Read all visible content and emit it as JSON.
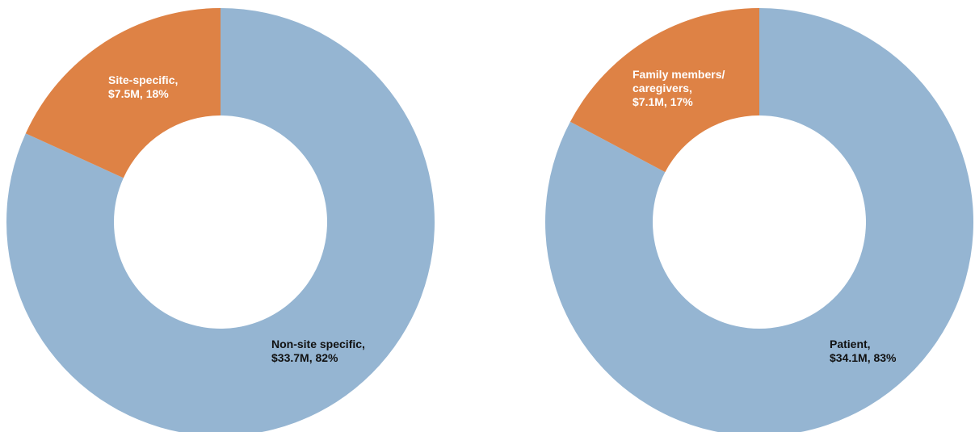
{
  "chart_data": [
    {
      "type": "pie",
      "variant": "donut",
      "title": "",
      "slices": [
        {
          "name": "Non-site specific",
          "value": 33.7,
          "value_label": "$33.7M",
          "percent": 82,
          "color": "#95b5d2",
          "label_lines": [
            "Non-site specific,",
            "$33.7M, 82%"
          ],
          "label_color": "#111111"
        },
        {
          "name": "Site-specific",
          "value": 7.5,
          "value_label": "$7.5M",
          "percent": 18,
          "color": "#de8245",
          "label_lines": [
            "Site-specific,",
            "$7.5M, 18%"
          ],
          "label_color": "#ffffff"
        }
      ]
    },
    {
      "type": "pie",
      "variant": "donut",
      "title": "",
      "slices": [
        {
          "name": "Patient",
          "value": 34.1,
          "value_label": "$34.1M",
          "percent": 83,
          "color": "#95b5d2",
          "label_lines": [
            "Patient,",
            "$34.1M, 83%"
          ],
          "label_color": "#111111"
        },
        {
          "name": "Family members/caregivers",
          "value": 7.1,
          "value_label": "$7.1M",
          "percent": 17,
          "color": "#de8245",
          "label_lines": [
            "Family members/",
            "caregivers,",
            "$7.1M, 17%"
          ],
          "label_color": "#ffffff"
        }
      ]
    }
  ]
}
